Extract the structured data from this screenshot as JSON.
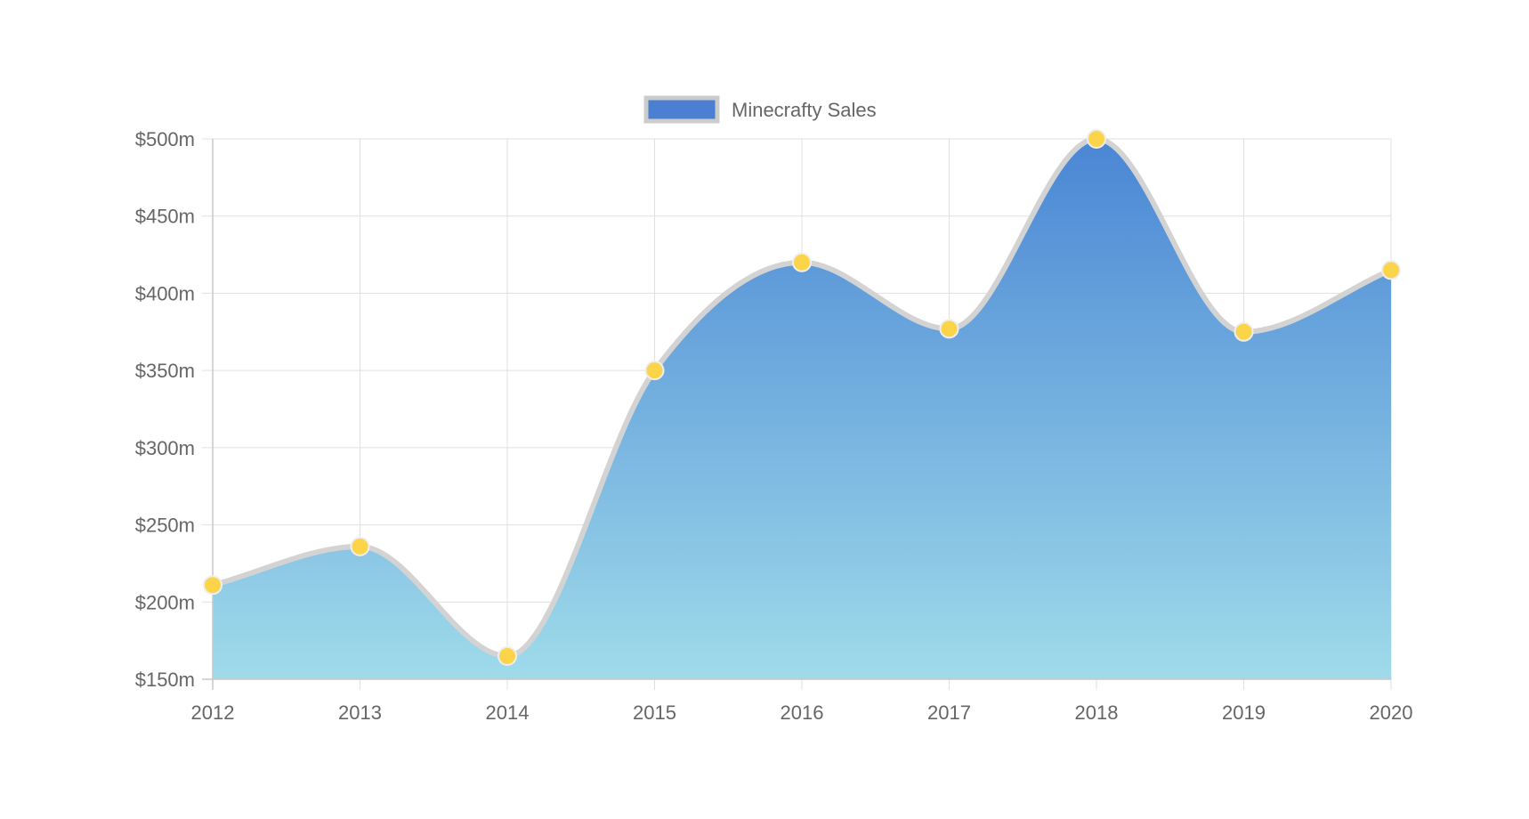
{
  "chart_data": {
    "type": "area",
    "title": "",
    "xlabel": "",
    "ylabel": "",
    "x": [
      "2012",
      "2013",
      "2014",
      "2015",
      "2016",
      "2017",
      "2018",
      "2019",
      "2020"
    ],
    "series": [
      {
        "name": "Minecrafty Sales",
        "values": [
          211,
          236,
          165,
          350,
          420,
          377,
          500,
          375,
          415
        ]
      }
    ],
    "ylim": [
      150,
      500
    ],
    "yticks": [
      150,
      200,
      250,
      300,
      350,
      400,
      450,
      500
    ],
    "ytick_labels": [
      "$150m",
      "$200m",
      "$250m",
      "$300m",
      "$350m",
      "$400m",
      "$450m",
      "$500m"
    ],
    "grid": true,
    "smooth": true,
    "legend_position": "top",
    "colors": {
      "fill_top": "#4a86d4",
      "fill_bottom": "#9fdbea",
      "line": "#d3d3d3",
      "point_fill": "#fbd449",
      "point_stroke": "#eeeeee",
      "grid": "#e0e0e0",
      "axis": "#c8c8c8",
      "legend_swatch": "#4a7fd1",
      "legend_swatch_border": "#cccccc"
    }
  }
}
